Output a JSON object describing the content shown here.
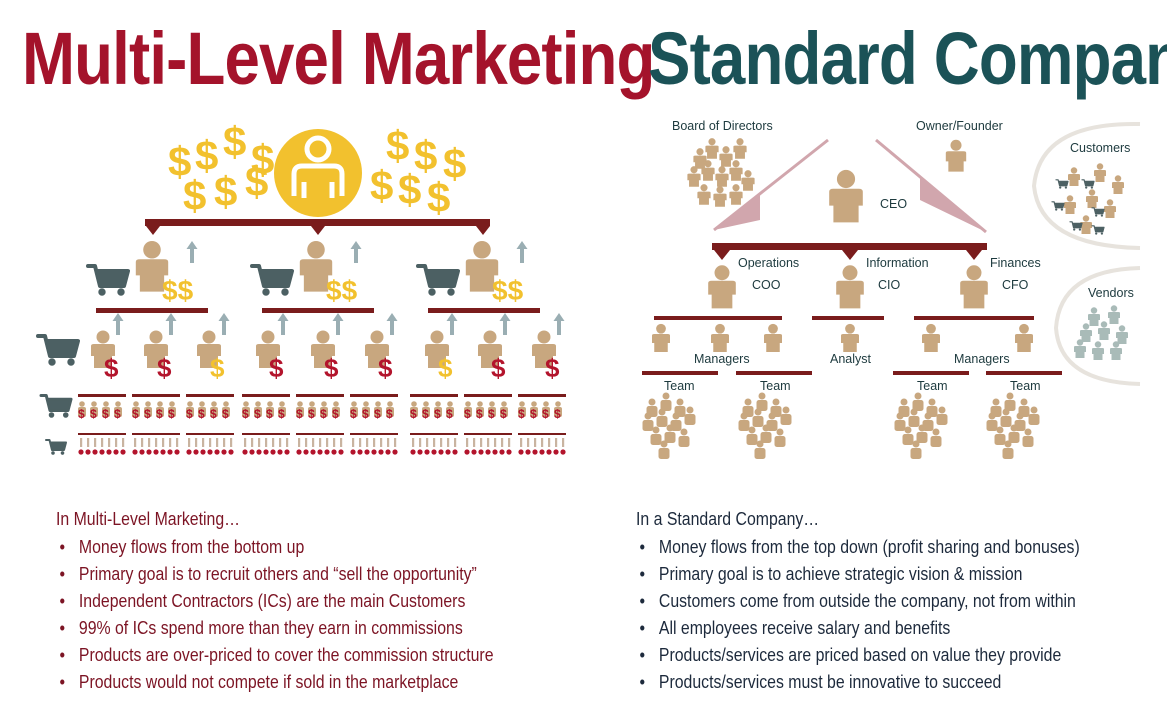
{
  "mlm": {
    "title": "Multi-Level Marketing",
    "intro": "In Multi-Level Marketing…",
    "bullets": [
      "Money flows from the bottom up",
      "Primary goal is to recruit others and “sell the opportunity”",
      "Independent Contractors (ICs) are the main Customers",
      "99% of ICs spend more than they earn in commissions",
      "Products are over-priced to cover the commission structure",
      "Products would not compete if sold in the marketplace"
    ]
  },
  "standard": {
    "title": "Standard Company",
    "intro": "In a Standard Company…",
    "bullets": [
      "Money flows from the top down (profit sharing and bonuses)",
      "Primary goal is to achieve strategic vision & mission",
      "Customers come from outside the company, not from within",
      "All employees receive salary and benefits",
      "Products/services are priced based on value they provide",
      "Products/services must be innovative to succeed"
    ],
    "labels": {
      "board": "Board of Directors",
      "owner": "Owner/Founder",
      "ceo": "CEO",
      "customers": "Customers",
      "vendors": "Vendors",
      "operations": "Operations",
      "information": "Information",
      "finances": "Finances",
      "coo": "COO",
      "cio": "CIO",
      "cfo": "CFO",
      "managers_left": "Managers",
      "analyst": "Analyst",
      "managers_right": "Managers",
      "team_1": "Team",
      "team_2": "Team",
      "team_3": "Team",
      "team_4": "Team"
    }
  },
  "colors": {
    "mlm_red": "#a4132b",
    "standard_teal": "#1b5257",
    "dollar_gold": "#f2c12e",
    "person_tan": "#c8a77f",
    "cart_slate": "#4c6063",
    "arrow_gray": "#9aaeb3",
    "dark_red_bar": "#7a1c1c",
    "mauve_line": "#d1a6ad"
  },
  "icons": {
    "person": "person-icon",
    "cart": "shopping-cart-icon",
    "dollar": "dollar-sign-icon",
    "up_arrow": "up-arrow-icon"
  }
}
